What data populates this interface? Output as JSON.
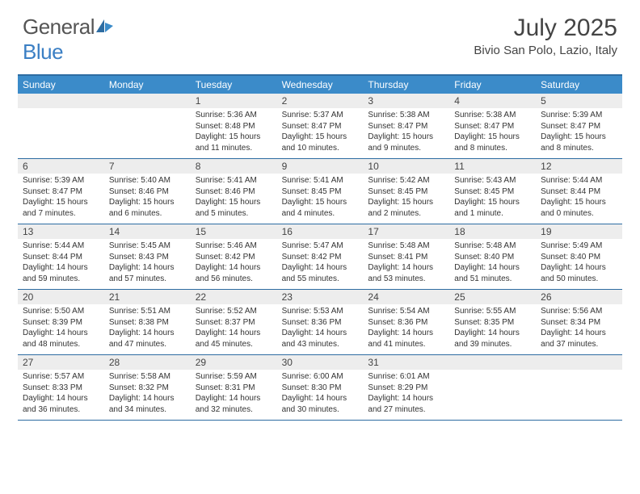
{
  "logo": {
    "text1": "General",
    "text2": "Blue"
  },
  "title": "July 2025",
  "location": "Bivio San Polo, Lazio, Italy",
  "colors": {
    "header_bg": "#3b8bc9",
    "border": "#2d6ca2",
    "daynum_bg": "#ededed",
    "logo_blue": "#3b7fc4"
  },
  "day_names": [
    "Sunday",
    "Monday",
    "Tuesday",
    "Wednesday",
    "Thursday",
    "Friday",
    "Saturday"
  ],
  "weeks": [
    [
      {
        "n": "",
        "sr": "",
        "ss": "",
        "dl": ""
      },
      {
        "n": "",
        "sr": "",
        "ss": "",
        "dl": ""
      },
      {
        "n": "1",
        "sr": "Sunrise: 5:36 AM",
        "ss": "Sunset: 8:48 PM",
        "dl": "Daylight: 15 hours and 11 minutes."
      },
      {
        "n": "2",
        "sr": "Sunrise: 5:37 AM",
        "ss": "Sunset: 8:47 PM",
        "dl": "Daylight: 15 hours and 10 minutes."
      },
      {
        "n": "3",
        "sr": "Sunrise: 5:38 AM",
        "ss": "Sunset: 8:47 PM",
        "dl": "Daylight: 15 hours and 9 minutes."
      },
      {
        "n": "4",
        "sr": "Sunrise: 5:38 AM",
        "ss": "Sunset: 8:47 PM",
        "dl": "Daylight: 15 hours and 8 minutes."
      },
      {
        "n": "5",
        "sr": "Sunrise: 5:39 AM",
        "ss": "Sunset: 8:47 PM",
        "dl": "Daylight: 15 hours and 8 minutes."
      }
    ],
    [
      {
        "n": "6",
        "sr": "Sunrise: 5:39 AM",
        "ss": "Sunset: 8:47 PM",
        "dl": "Daylight: 15 hours and 7 minutes."
      },
      {
        "n": "7",
        "sr": "Sunrise: 5:40 AM",
        "ss": "Sunset: 8:46 PM",
        "dl": "Daylight: 15 hours and 6 minutes."
      },
      {
        "n": "8",
        "sr": "Sunrise: 5:41 AM",
        "ss": "Sunset: 8:46 PM",
        "dl": "Daylight: 15 hours and 5 minutes."
      },
      {
        "n": "9",
        "sr": "Sunrise: 5:41 AM",
        "ss": "Sunset: 8:45 PM",
        "dl": "Daylight: 15 hours and 4 minutes."
      },
      {
        "n": "10",
        "sr": "Sunrise: 5:42 AM",
        "ss": "Sunset: 8:45 PM",
        "dl": "Daylight: 15 hours and 2 minutes."
      },
      {
        "n": "11",
        "sr": "Sunrise: 5:43 AM",
        "ss": "Sunset: 8:45 PM",
        "dl": "Daylight: 15 hours and 1 minute."
      },
      {
        "n": "12",
        "sr": "Sunrise: 5:44 AM",
        "ss": "Sunset: 8:44 PM",
        "dl": "Daylight: 15 hours and 0 minutes."
      }
    ],
    [
      {
        "n": "13",
        "sr": "Sunrise: 5:44 AM",
        "ss": "Sunset: 8:44 PM",
        "dl": "Daylight: 14 hours and 59 minutes."
      },
      {
        "n": "14",
        "sr": "Sunrise: 5:45 AM",
        "ss": "Sunset: 8:43 PM",
        "dl": "Daylight: 14 hours and 57 minutes."
      },
      {
        "n": "15",
        "sr": "Sunrise: 5:46 AM",
        "ss": "Sunset: 8:42 PM",
        "dl": "Daylight: 14 hours and 56 minutes."
      },
      {
        "n": "16",
        "sr": "Sunrise: 5:47 AM",
        "ss": "Sunset: 8:42 PM",
        "dl": "Daylight: 14 hours and 55 minutes."
      },
      {
        "n": "17",
        "sr": "Sunrise: 5:48 AM",
        "ss": "Sunset: 8:41 PM",
        "dl": "Daylight: 14 hours and 53 minutes."
      },
      {
        "n": "18",
        "sr": "Sunrise: 5:48 AM",
        "ss": "Sunset: 8:40 PM",
        "dl": "Daylight: 14 hours and 51 minutes."
      },
      {
        "n": "19",
        "sr": "Sunrise: 5:49 AM",
        "ss": "Sunset: 8:40 PM",
        "dl": "Daylight: 14 hours and 50 minutes."
      }
    ],
    [
      {
        "n": "20",
        "sr": "Sunrise: 5:50 AM",
        "ss": "Sunset: 8:39 PM",
        "dl": "Daylight: 14 hours and 48 minutes."
      },
      {
        "n": "21",
        "sr": "Sunrise: 5:51 AM",
        "ss": "Sunset: 8:38 PM",
        "dl": "Daylight: 14 hours and 47 minutes."
      },
      {
        "n": "22",
        "sr": "Sunrise: 5:52 AM",
        "ss": "Sunset: 8:37 PM",
        "dl": "Daylight: 14 hours and 45 minutes."
      },
      {
        "n": "23",
        "sr": "Sunrise: 5:53 AM",
        "ss": "Sunset: 8:36 PM",
        "dl": "Daylight: 14 hours and 43 minutes."
      },
      {
        "n": "24",
        "sr": "Sunrise: 5:54 AM",
        "ss": "Sunset: 8:36 PM",
        "dl": "Daylight: 14 hours and 41 minutes."
      },
      {
        "n": "25",
        "sr": "Sunrise: 5:55 AM",
        "ss": "Sunset: 8:35 PM",
        "dl": "Daylight: 14 hours and 39 minutes."
      },
      {
        "n": "26",
        "sr": "Sunrise: 5:56 AM",
        "ss": "Sunset: 8:34 PM",
        "dl": "Daylight: 14 hours and 37 minutes."
      }
    ],
    [
      {
        "n": "27",
        "sr": "Sunrise: 5:57 AM",
        "ss": "Sunset: 8:33 PM",
        "dl": "Daylight: 14 hours and 36 minutes."
      },
      {
        "n": "28",
        "sr": "Sunrise: 5:58 AM",
        "ss": "Sunset: 8:32 PM",
        "dl": "Daylight: 14 hours and 34 minutes."
      },
      {
        "n": "29",
        "sr": "Sunrise: 5:59 AM",
        "ss": "Sunset: 8:31 PM",
        "dl": "Daylight: 14 hours and 32 minutes."
      },
      {
        "n": "30",
        "sr": "Sunrise: 6:00 AM",
        "ss": "Sunset: 8:30 PM",
        "dl": "Daylight: 14 hours and 30 minutes."
      },
      {
        "n": "31",
        "sr": "Sunrise: 6:01 AM",
        "ss": "Sunset: 8:29 PM",
        "dl": "Daylight: 14 hours and 27 minutes."
      },
      {
        "n": "",
        "sr": "",
        "ss": "",
        "dl": ""
      },
      {
        "n": "",
        "sr": "",
        "ss": "",
        "dl": ""
      }
    ]
  ]
}
